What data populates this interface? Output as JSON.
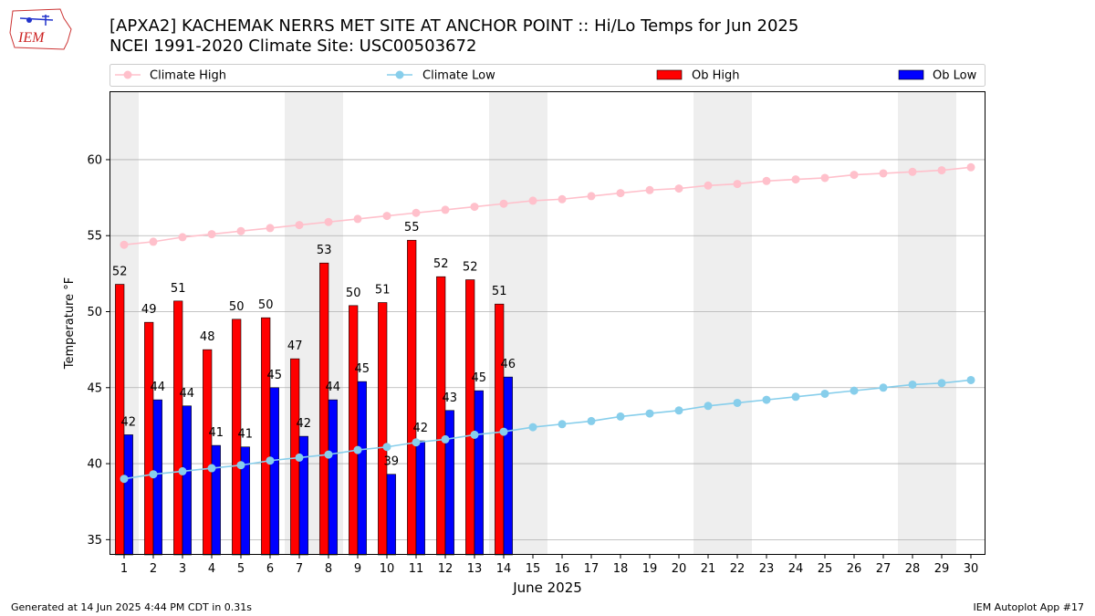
{
  "header": {
    "title_line1": "[APXA2] KACHEMAK NERRS MET SITE AT ANCHOR POINT :: Hi/Lo Temps for Jun 2025",
    "title_line2": "NCEI 1991-2020 Climate Site: USC00503672"
  },
  "logo": {
    "text": "IEM"
  },
  "footer": {
    "generated": "Generated at 14 Jun 2025 4:44 PM CDT in 0.31s",
    "app": "IEM Autoplot App #17"
  },
  "colors": {
    "ob_high": "#ff0000",
    "ob_low": "#0000ff",
    "climate_high": "#ffc0cb",
    "climate_low": "#87ceeb",
    "weekend_band": "#eeeeee",
    "grid": "#b0b0b0"
  },
  "chart_data": {
    "type": "bar",
    "xlabel": "June 2025",
    "ylabel": "Temperature °F",
    "ylim": [
      34,
      64.5
    ],
    "xlim": [
      0.5,
      30.5
    ],
    "yticks": [
      35,
      40,
      45,
      50,
      55,
      60
    ],
    "grid": "horizontal",
    "legend_placement": "top",
    "weekend_days": [
      1,
      7,
      8,
      14,
      15,
      21,
      22,
      28,
      29
    ],
    "days": [
      1,
      2,
      3,
      4,
      5,
      6,
      7,
      8,
      9,
      10,
      11,
      12,
      13,
      14,
      15,
      16,
      17,
      18,
      19,
      20,
      21,
      22,
      23,
      24,
      25,
      26,
      27,
      28,
      29,
      30
    ],
    "series": [
      {
        "name": "Climate High",
        "kind": "line",
        "values": [
          54.4,
          54.6,
          54.9,
          55.1,
          55.3,
          55.5,
          55.7,
          55.9,
          56.1,
          56.3,
          56.5,
          56.7,
          56.9,
          57.1,
          57.3,
          57.4,
          57.6,
          57.8,
          58.0,
          58.1,
          58.3,
          58.4,
          58.6,
          58.7,
          58.8,
          59.0,
          59.1,
          59.2,
          59.3,
          59.5
        ]
      },
      {
        "name": "Climate Low",
        "kind": "line",
        "values": [
          39.0,
          39.3,
          39.5,
          39.7,
          39.9,
          40.2,
          40.4,
          40.6,
          40.9,
          41.1,
          41.4,
          41.6,
          41.9,
          42.1,
          42.4,
          42.6,
          42.8,
          43.1,
          43.3,
          43.5,
          43.8,
          44.0,
          44.2,
          44.4,
          44.6,
          44.8,
          45.0,
          45.2,
          45.3,
          45.5
        ]
      },
      {
        "name": "Ob High",
        "kind": "bar",
        "values": [
          51.8,
          49.3,
          50.7,
          47.5,
          49.5,
          49.6,
          46.9,
          53.2,
          50.4,
          50.6,
          54.7,
          52.3,
          52.1,
          50.5
        ],
        "labels": [
          "52",
          "49",
          "51",
          "48",
          "50",
          "50",
          "47",
          "53",
          "50",
          "51",
          "55",
          "52",
          "52",
          "51"
        ]
      },
      {
        "name": "Ob Low",
        "kind": "bar",
        "values": [
          41.9,
          44.2,
          43.8,
          41.2,
          41.1,
          45.0,
          41.8,
          44.2,
          45.4,
          39.3,
          41.5,
          43.5,
          44.8,
          45.7
        ],
        "labels": [
          "42",
          "44",
          "44",
          "41",
          "41",
          "45",
          "42",
          "44",
          "45",
          "39",
          "42",
          "43",
          "45",
          "46"
        ]
      }
    ]
  }
}
